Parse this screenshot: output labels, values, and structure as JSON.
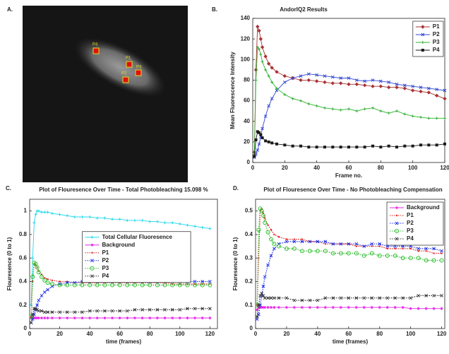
{
  "image_panel": {
    "panel_label": "A.",
    "markers": [
      "P4",
      "P1",
      "P3",
      "P2"
    ]
  },
  "chart_data": [
    {
      "type": "line",
      "panel_label": "B.",
      "title": "AndorIQ2 Results",
      "x_label": "Frame no.",
      "y_label": "Mean Fluorescence Intensity",
      "xlim": [
        0,
        120
      ],
      "xticks": [
        0,
        20,
        40,
        60,
        80,
        100,
        120
      ],
      "ylim": [
        0,
        140
      ],
      "yticks": [
        0,
        20,
        40,
        60,
        80,
        100,
        120,
        140
      ],
      "legend_position": "upper right",
      "x": [
        1,
        2,
        3,
        4,
        5,
        6,
        8,
        10,
        12,
        15,
        20,
        25,
        30,
        35,
        40,
        45,
        50,
        55,
        60,
        65,
        70,
        75,
        80,
        85,
        90,
        95,
        100,
        105,
        110,
        115,
        120
      ],
      "series": [
        {
          "name": "P1",
          "color": "#a83232",
          "marker": "diamond",
          "line_style": "solid",
          "values": [
            10,
            90,
            132,
            128,
            120,
            112,
            103,
            96,
            92,
            88,
            84,
            82,
            80,
            80,
            79,
            78,
            77,
            77,
            76,
            76,
            75,
            74,
            74,
            73,
            73,
            72,
            70,
            69,
            68,
            65,
            62
          ]
        },
        {
          "name": "P2",
          "color": "#3346d6",
          "marker": "x",
          "line_style": "solid",
          "values": [
            5,
            8,
            12,
            18,
            25,
            33,
            45,
            55,
            62,
            70,
            78,
            82,
            84,
            86,
            85,
            84,
            83,
            82,
            82,
            80,
            79,
            80,
            79,
            78,
            76,
            75,
            74,
            73,
            72,
            71,
            70
          ]
        },
        {
          "name": "P3",
          "color": "#2fb02f",
          "marker": "plus",
          "line_style": "solid",
          "values": [
            8,
            80,
            112,
            110,
            105,
            98,
            90,
            84,
            78,
            72,
            66,
            62,
            60,
            57,
            55,
            53,
            52,
            51,
            52,
            50,
            52,
            53,
            50,
            48,
            50,
            47,
            45,
            44,
            43,
            43,
            43
          ]
        },
        {
          "name": "P4",
          "color": "#1a1a1a",
          "marker": "square",
          "line_style": "solid",
          "values": [
            6,
            22,
            30,
            29,
            27,
            24,
            21,
            20,
            19,
            18,
            17,
            16,
            16,
            15,
            15,
            15,
            15,
            15,
            15,
            15,
            15,
            16,
            15,
            16,
            15,
            16,
            16,
            17,
            17,
            17,
            18
          ]
        }
      ]
    },
    {
      "type": "line",
      "panel_label": "C.",
      "title": "Plot of Flouresence Over Time - Total Photobleaching 15.098 %",
      "x_label": "time (frames)",
      "y_label": "Flouresence (0 to 1)",
      "xlim": [
        0,
        125
      ],
      "xticks": [
        0,
        20,
        40,
        60,
        80,
        100,
        120
      ],
      "ylim": [
        0,
        1.1
      ],
      "yticks": [
        0,
        0.2,
        0.4,
        0.6,
        0.8,
        1
      ],
      "legend_position": "center",
      "x": [
        1,
        2,
        3,
        4,
        5,
        6,
        8,
        10,
        12,
        15,
        20,
        25,
        30,
        35,
        40,
        45,
        50,
        55,
        60,
        65,
        70,
        75,
        80,
        85,
        90,
        95,
        100,
        105,
        110,
        115,
        120
      ],
      "series": [
        {
          "name": "Total Cellular Fluoresence",
          "color": "#22d8ec",
          "marker": "plus",
          "line_style": "solid",
          "values": [
            0.2,
            0.6,
            0.9,
            0.97,
            1.0,
            1.0,
            0.99,
            0.99,
            0.99,
            0.98,
            0.97,
            0.96,
            0.95,
            0.95,
            0.95,
            0.94,
            0.94,
            0.93,
            0.93,
            0.92,
            0.92,
            0.92,
            0.91,
            0.91,
            0.9,
            0.9,
            0.89,
            0.88,
            0.87,
            0.86,
            0.85
          ]
        },
        {
          "name": "Background",
          "color": "#e826e8",
          "marker": "star",
          "line_style": "solid",
          "values": [
            0.09,
            0.09,
            0.09,
            0.09,
            0.09,
            0.09,
            0.09,
            0.09,
            0.09,
            0.09,
            0.09,
            0.09,
            0.09,
            0.09,
            0.09,
            0.09,
            0.09,
            0.09,
            0.09,
            0.09,
            0.09,
            0.09,
            0.09,
            0.09,
            0.09,
            0.09,
            0.09,
            0.09,
            0.09,
            0.09,
            0.09
          ]
        },
        {
          "name": "P1",
          "color": "#e02020",
          "marker": "dot",
          "line_style": "dotted",
          "values": [
            0.1,
            0.4,
            0.55,
            0.54,
            0.52,
            0.49,
            0.46,
            0.43,
            0.42,
            0.41,
            0.4,
            0.4,
            0.39,
            0.39,
            0.39,
            0.39,
            0.39,
            0.39,
            0.39,
            0.39,
            0.39,
            0.39,
            0.39,
            0.39,
            0.39,
            0.38,
            0.38,
            0.38,
            0.38,
            0.38,
            0.38
          ]
        },
        {
          "name": "P2",
          "color": "#2030e8",
          "marker": "x",
          "line_style": "dotted",
          "values": [
            0.05,
            0.08,
            0.12,
            0.16,
            0.2,
            0.24,
            0.28,
            0.31,
            0.33,
            0.36,
            0.38,
            0.39,
            0.39,
            0.4,
            0.4,
            0.4,
            0.4,
            0.4,
            0.4,
            0.4,
            0.4,
            0.4,
            0.4,
            0.4,
            0.4,
            0.4,
            0.4,
            0.4,
            0.4,
            0.4,
            0.4
          ]
        },
        {
          "name": "P3",
          "color": "#30c030",
          "marker": "circle",
          "line_style": "dotted",
          "values": [
            0.1,
            0.44,
            0.56,
            0.55,
            0.52,
            0.48,
            0.44,
            0.41,
            0.39,
            0.38,
            0.37,
            0.37,
            0.37,
            0.37,
            0.37,
            0.37,
            0.37,
            0.37,
            0.37,
            0.37,
            0.37,
            0.37,
            0.37,
            0.37,
            0.37,
            0.37,
            0.37,
            0.37,
            0.37,
            0.37,
            0.37
          ]
        },
        {
          "name": "P4",
          "color": "#333333",
          "marker": "x",
          "line_style": "dotted",
          "values": [
            0.05,
            0.12,
            0.17,
            0.17,
            0.16,
            0.15,
            0.15,
            0.14,
            0.14,
            0.14,
            0.14,
            0.14,
            0.14,
            0.14,
            0.15,
            0.15,
            0.15,
            0.15,
            0.15,
            0.15,
            0.16,
            0.16,
            0.16,
            0.16,
            0.16,
            0.16,
            0.16,
            0.17,
            0.17,
            0.17,
            0.17
          ]
        }
      ]
    },
    {
      "type": "line",
      "panel_label": "D.",
      "title": "Plot of Flouresence Over Time - No Photobleaching Compensation",
      "x_label": "time (frames)",
      "y_label": "Flouresence (0 to 1)",
      "xlim": [
        0,
        122
      ],
      "xticks": [
        0,
        20,
        40,
        60,
        80,
        100,
        120
      ],
      "ylim": [
        0,
        0.55
      ],
      "yticks": [
        0,
        0.1,
        0.2,
        0.3,
        0.4,
        0.5
      ],
      "legend_position": "upper right",
      "x": [
        1,
        2,
        3,
        4,
        5,
        6,
        8,
        10,
        12,
        15,
        20,
        25,
        30,
        35,
        40,
        45,
        50,
        55,
        60,
        65,
        70,
        75,
        80,
        85,
        90,
        95,
        100,
        105,
        110,
        115,
        120
      ],
      "series": [
        {
          "name": "Background",
          "color": "#e826e8",
          "marker": "star",
          "line_style": "solid",
          "values": [
            0.08,
            0.09,
            0.09,
            0.09,
            0.09,
            0.09,
            0.09,
            0.09,
            0.09,
            0.09,
            0.09,
            0.09,
            0.09,
            0.09,
            0.09,
            0.09,
            0.09,
            0.09,
            0.09,
            0.09,
            0.09,
            0.09,
            0.09,
            0.09,
            0.09,
            0.09,
            0.085,
            0.085,
            0.085,
            0.085,
            0.085
          ]
        },
        {
          "name": "P1",
          "color": "#e02020",
          "marker": "dot",
          "line_style": "dotted",
          "values": [
            0.1,
            0.3,
            0.5,
            0.51,
            0.49,
            0.47,
            0.44,
            0.42,
            0.4,
            0.39,
            0.38,
            0.38,
            0.38,
            0.37,
            0.37,
            0.36,
            0.36,
            0.36,
            0.36,
            0.35,
            0.35,
            0.35,
            0.35,
            0.34,
            0.34,
            0.34,
            0.34,
            0.33,
            0.33,
            0.32,
            0.32
          ]
        },
        {
          "name": "P2",
          "color": "#2030e8",
          "marker": "x",
          "line_style": "dotted",
          "values": [
            0.04,
            0.06,
            0.1,
            0.14,
            0.18,
            0.22,
            0.27,
            0.31,
            0.34,
            0.36,
            0.37,
            0.37,
            0.37,
            0.37,
            0.37,
            0.37,
            0.36,
            0.36,
            0.36,
            0.36,
            0.35,
            0.36,
            0.36,
            0.35,
            0.35,
            0.35,
            0.35,
            0.34,
            0.34,
            0.34,
            0.33
          ]
        },
        {
          "name": "P3",
          "color": "#30c030",
          "marker": "circle",
          "line_style": "dotted",
          "values": [
            0.1,
            0.42,
            0.51,
            0.5,
            0.48,
            0.45,
            0.41,
            0.38,
            0.36,
            0.35,
            0.34,
            0.34,
            0.33,
            0.33,
            0.33,
            0.33,
            0.32,
            0.32,
            0.32,
            0.32,
            0.31,
            0.32,
            0.31,
            0.31,
            0.31,
            0.3,
            0.3,
            0.3,
            0.29,
            0.29,
            0.29
          ]
        },
        {
          "name": "P4",
          "color": "#333333",
          "marker": "x",
          "line_style": "dotted",
          "values": [
            0.05,
            0.1,
            0.14,
            0.15,
            0.14,
            0.13,
            0.13,
            0.13,
            0.13,
            0.13,
            0.13,
            0.12,
            0.12,
            0.12,
            0.12,
            0.13,
            0.13,
            0.13,
            0.13,
            0.13,
            0.13,
            0.13,
            0.13,
            0.13,
            0.13,
            0.13,
            0.13,
            0.14,
            0.14,
            0.14,
            0.14
          ]
        }
      ]
    }
  ]
}
